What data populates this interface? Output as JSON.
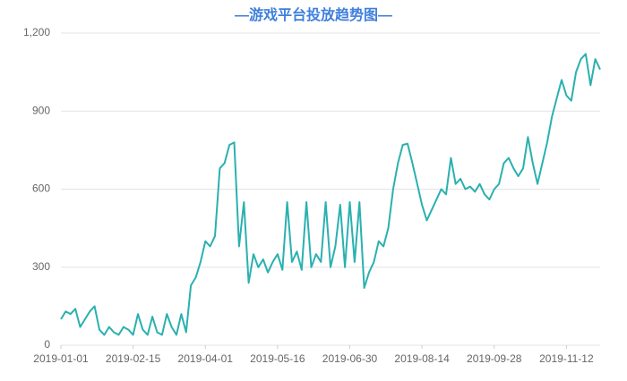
{
  "chart_data": {
    "type": "line",
    "title": "—游戏平台投放趋势图—",
    "x": [
      "2019-01-01",
      "2019-01-04",
      "2019-01-07",
      "2019-01-10",
      "2019-01-13",
      "2019-01-16",
      "2019-01-19",
      "2019-01-22",
      "2019-01-25",
      "2019-01-28",
      "2019-01-31",
      "2019-02-03",
      "2019-02-06",
      "2019-02-09",
      "2019-02-12",
      "2019-02-15",
      "2019-02-18",
      "2019-02-21",
      "2019-02-24",
      "2019-02-27",
      "2019-03-02",
      "2019-03-05",
      "2019-03-08",
      "2019-03-11",
      "2019-03-14",
      "2019-03-17",
      "2019-03-20",
      "2019-03-23",
      "2019-03-26",
      "2019-03-29",
      "2019-04-01",
      "2019-04-04",
      "2019-04-07",
      "2019-04-10",
      "2019-04-13",
      "2019-04-16",
      "2019-04-19",
      "2019-04-22",
      "2019-04-25",
      "2019-04-28",
      "2019-05-01",
      "2019-05-04",
      "2019-05-07",
      "2019-05-10",
      "2019-05-13",
      "2019-05-16",
      "2019-05-19",
      "2019-05-22",
      "2019-05-25",
      "2019-05-28",
      "2019-05-31",
      "2019-06-03",
      "2019-06-06",
      "2019-06-09",
      "2019-06-12",
      "2019-06-15",
      "2019-06-18",
      "2019-06-21",
      "2019-06-24",
      "2019-06-27",
      "2019-06-30",
      "2019-07-03",
      "2019-07-06",
      "2019-07-09",
      "2019-07-12",
      "2019-07-15",
      "2019-07-18",
      "2019-07-21",
      "2019-07-24",
      "2019-07-27",
      "2019-07-30",
      "2019-08-02",
      "2019-08-05",
      "2019-08-08",
      "2019-08-11",
      "2019-08-14",
      "2019-08-17",
      "2019-08-20",
      "2019-08-23",
      "2019-08-26",
      "2019-08-29",
      "2019-09-01",
      "2019-09-04",
      "2019-09-07",
      "2019-09-10",
      "2019-09-13",
      "2019-09-16",
      "2019-09-19",
      "2019-09-22",
      "2019-09-25",
      "2019-09-28",
      "2019-10-01",
      "2019-10-04",
      "2019-10-07",
      "2019-10-10",
      "2019-10-13",
      "2019-10-16",
      "2019-10-19",
      "2019-10-22",
      "2019-10-25",
      "2019-10-28",
      "2019-10-31",
      "2019-11-03",
      "2019-11-06",
      "2019-11-09",
      "2019-11-12",
      "2019-11-15",
      "2019-11-18",
      "2019-11-21",
      "2019-11-24",
      "2019-11-27",
      "2019-11-30",
      "2019-12-03"
    ],
    "values": [
      100,
      130,
      120,
      140,
      70,
      100,
      130,
      150,
      60,
      40,
      70,
      50,
      40,
      70,
      60,
      40,
      120,
      60,
      40,
      110,
      50,
      40,
      120,
      70,
      40,
      120,
      50,
      230,
      260,
      320,
      400,
      380,
      420,
      680,
      700,
      770,
      780,
      380,
      550,
      240,
      350,
      300,
      330,
      280,
      320,
      350,
      290,
      550,
      320,
      360,
      290,
      550,
      300,
      350,
      320,
      550,
      300,
      380,
      540,
      300,
      550,
      320,
      550,
      220,
      280,
      320,
      400,
      380,
      450,
      600,
      700,
      770,
      775,
      700,
      620,
      540,
      480,
      520,
      560,
      600,
      580,
      720,
      620,
      640,
      600,
      610,
      590,
      620,
      580,
      560,
      600,
      620,
      700,
      720,
      680,
      650,
      680,
      800,
      700,
      620,
      700,
      780,
      880,
      950,
      1020,
      960,
      940,
      1050,
      1100,
      1120,
      1000,
      1100,
      1060
    ],
    "color": "#2bb0b0",
    "xlim": [
      "2019-01-01",
      "2019-12-03"
    ],
    "xticks": [
      "2019-01-01",
      "2019-02-15",
      "2019-04-01",
      "2019-05-16",
      "2019-06-30",
      "2019-08-14",
      "2019-09-28",
      "2019-11-12"
    ],
    "ylim": [
      0,
      1200
    ],
    "yticks": [
      0,
      300,
      600,
      900,
      {
        "value": 1200,
        "label": "1,200"
      }
    ],
    "grid": true
  }
}
